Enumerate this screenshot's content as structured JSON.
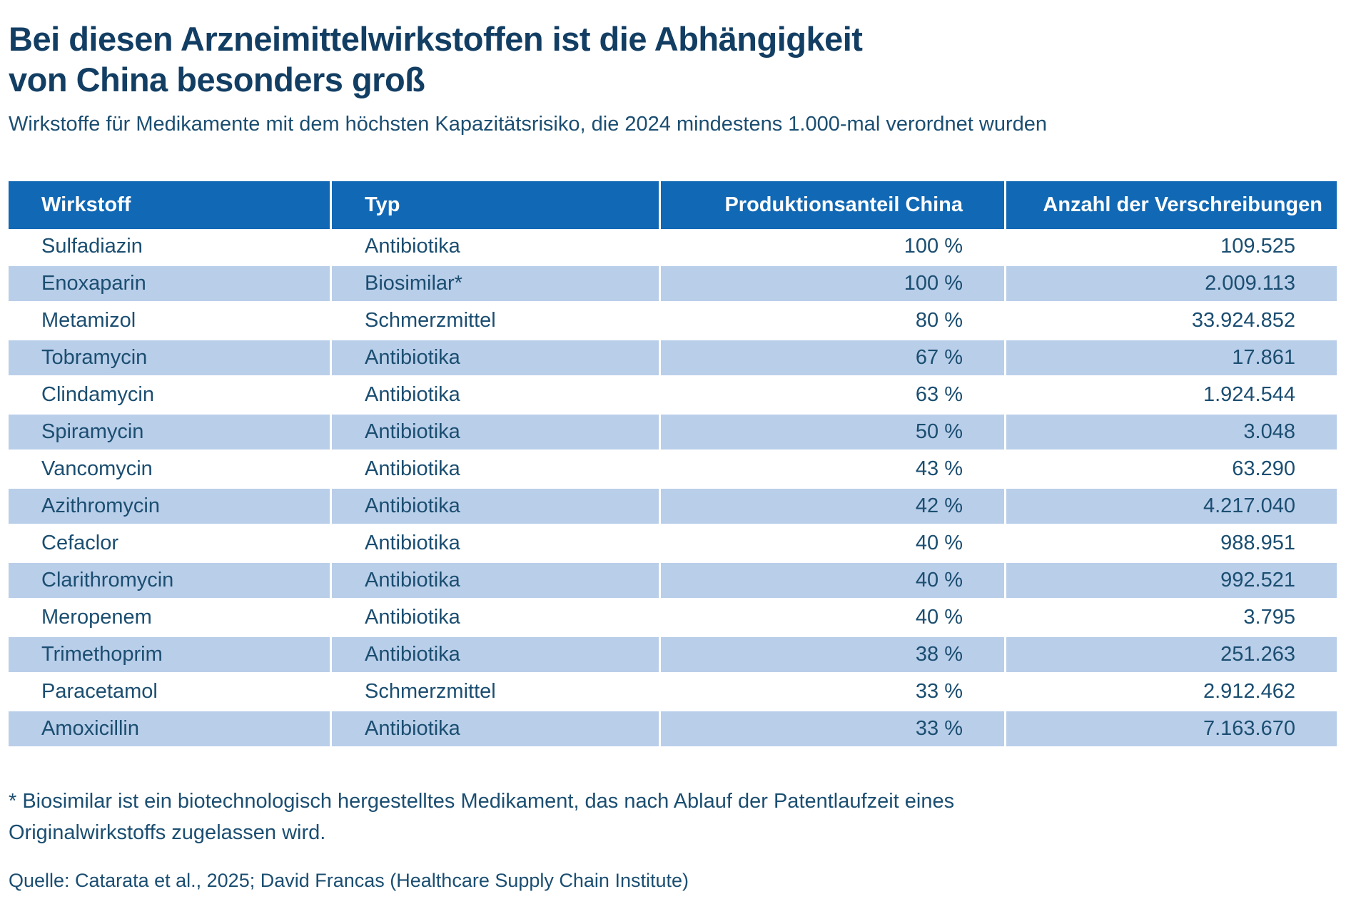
{
  "title": {
    "line1": "Bei diesen Arzneimittelwirkstoffen ist die Abhängigkeit",
    "line2": "von China besonders groß"
  },
  "subtitle": "Wirkstoffe für Medikamente mit dem höchsten Kapazitätsrisiko, die 2024 mindestens 1.000-mal verordnet wurden",
  "table": {
    "columns": [
      "Wirkstoff",
      "Typ",
      "Produktionsanteil China",
      "Anzahl der Verschreibungen"
    ],
    "rows": [
      {
        "wirkstoff": "Sulfadiazin",
        "typ": "Antibiotika",
        "anteil": "100 %",
        "verschreibungen": "109.525"
      },
      {
        "wirkstoff": "Enoxaparin",
        "typ": "Biosimilar*",
        "anteil": "100 %",
        "verschreibungen": "2.009.113"
      },
      {
        "wirkstoff": "Metamizol",
        "typ": "Schmerzmittel",
        "anteil": "80 %",
        "verschreibungen": "33.924.852"
      },
      {
        "wirkstoff": "Tobramycin",
        "typ": "Antibiotika",
        "anteil": "67 %",
        "verschreibungen": "17.861"
      },
      {
        "wirkstoff": "Clindamycin",
        "typ": "Antibiotika",
        "anteil": "63 %",
        "verschreibungen": "1.924.544"
      },
      {
        "wirkstoff": "Spiramycin",
        "typ": "Antibiotika",
        "anteil": "50 %",
        "verschreibungen": "3.048"
      },
      {
        "wirkstoff": "Vancomycin",
        "typ": "Antibiotika",
        "anteil": "43 %",
        "verschreibungen": "63.290"
      },
      {
        "wirkstoff": "Azithromycin",
        "typ": "Antibiotika",
        "anteil": "42 %",
        "verschreibungen": "4.217.040"
      },
      {
        "wirkstoff": "Cefaclor",
        "typ": "Antibiotika",
        "anteil": "40 %",
        "verschreibungen": "988.951"
      },
      {
        "wirkstoff": "Clarithromycin",
        "typ": "Antibiotika",
        "anteil": "40 %",
        "verschreibungen": "992.521"
      },
      {
        "wirkstoff": "Meropenem",
        "typ": "Antibiotika",
        "anteil": "40 %",
        "verschreibungen": "3.795"
      },
      {
        "wirkstoff": "Trimethoprim",
        "typ": "Antibiotika",
        "anteil": "38 %",
        "verschreibungen": "251.263"
      },
      {
        "wirkstoff": "Paracetamol",
        "typ": "Schmerzmittel",
        "anteil": "33 %",
        "verschreibungen": "2.912.462"
      },
      {
        "wirkstoff": "Amoxicillin",
        "typ": "Antibiotika",
        "anteil": "33 %",
        "verschreibungen": "7.163.670"
      }
    ]
  },
  "footnote": {
    "line1": "* Biosimilar ist ein biotechnologisch hergestelltes Medikament, das nach Ablauf der Patentlaufzeit eines",
    "line2": "Originalwirkstoffs zugelassen wird."
  },
  "source": "Quelle: Catarata et al., 2025; David Francas (Healthcare Supply Chain Institute)",
  "colors": {
    "header_bg": "#1168b4",
    "row_alt_bg": "#b9cee9",
    "title_color": "#133e63",
    "text_color": "#1b4e71",
    "page_bg": "#ffffff"
  },
  "chart_data": {
    "type": "table",
    "title": "Bei diesen Arzneimittelwirkstoffen ist die Abhängigkeit von China besonders groß",
    "subtitle": "Wirkstoffe für Medikamente mit dem höchsten Kapazitätsrisiko, die 2024 mindestens 1.000-mal verordnet wurden",
    "columns": [
      "Wirkstoff",
      "Typ",
      "Produktionsanteil China (%)",
      "Anzahl der Verschreibungen"
    ],
    "rows": [
      [
        "Sulfadiazin",
        "Antibiotika",
        100,
        109525
      ],
      [
        "Enoxaparin",
        "Biosimilar*",
        100,
        2009113
      ],
      [
        "Metamizol",
        "Schmerzmittel",
        80,
        33924852
      ],
      [
        "Tobramycin",
        "Antibiotika",
        67,
        17861
      ],
      [
        "Clindamycin",
        "Antibiotika",
        63,
        1924544
      ],
      [
        "Spiramycin",
        "Antibiotika",
        50,
        3048
      ],
      [
        "Vancomycin",
        "Antibiotika",
        43,
        63290
      ],
      [
        "Azithromycin",
        "Antibiotika",
        42,
        4217040
      ],
      [
        "Cefaclor",
        "Antibiotika",
        40,
        988951
      ],
      [
        "Clarithromycin",
        "Antibiotika",
        40,
        992521
      ],
      [
        "Meropenem",
        "Antibiotika",
        40,
        3795
      ],
      [
        "Trimethoprim",
        "Antibiotika",
        38,
        251263
      ],
      [
        "Paracetamol",
        "Schmerzmittel",
        33,
        2912462
      ],
      [
        "Amoxicillin",
        "Antibiotika",
        33,
        7163670
      ]
    ],
    "units": {
      "Produktionsanteil China": "%"
    },
    "number_format": "de-DE (Tausenderpunkt)",
    "footnote": "* Biosimilar ist ein biotechnologisch hergestelltes Medikament, das nach Ablauf der Patentlaufzeit eines Originalwirkstoffs zugelassen wird.",
    "source": "Quelle: Catarata et al., 2025; David Francas (Healthcare Supply Chain Institute)"
  }
}
